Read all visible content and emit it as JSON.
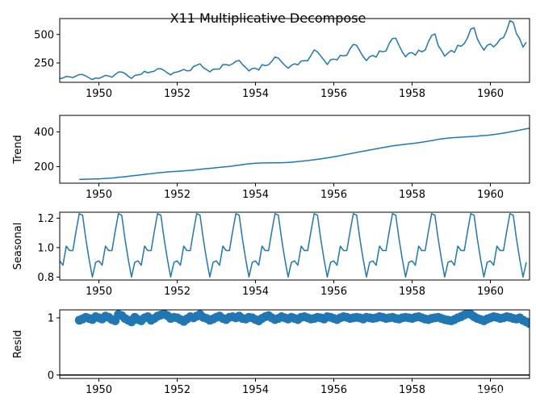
{
  "title": "X11 Multiplicative Decompose",
  "watermark": "知乎 @陈不知",
  "series_color": "#1f77b4",
  "chart_data": [
    {
      "type": "line",
      "name": "observed",
      "ylabel": "",
      "xlim": [
        1949.0,
        1961.0
      ],
      "ylim": [
        80,
        640
      ],
      "x_ticks": [
        1950,
        1952,
        1954,
        1956,
        1958,
        1960
      ],
      "y_ticks": [
        250,
        500
      ],
      "start": 1949.0,
      "step": 0.0833333,
      "values": [
        112,
        118,
        132,
        129,
        121,
        135,
        148,
        148,
        136,
        119,
        104,
        118,
        115,
        126,
        141,
        135,
        125,
        149,
        170,
        170,
        158,
        133,
        114,
        140,
        145,
        150,
        178,
        163,
        172,
        178,
        199,
        199,
        184,
        162,
        146,
        166,
        171,
        180,
        193,
        181,
        183,
        218,
        230,
        242,
        209,
        191,
        172,
        194,
        196,
        196,
        236,
        235,
        229,
        243,
        264,
        272,
        237,
        211,
        180,
        201,
        204,
        188,
        235,
        227,
        234,
        264,
        302,
        293,
        259,
        229,
        203,
        229,
        242,
        233,
        267,
        269,
        270,
        315,
        364,
        347,
        312,
        274,
        237,
        278,
        284,
        277,
        317,
        313,
        318,
        374,
        413,
        405,
        355,
        306,
        271,
        306,
        315,
        301,
        356,
        348,
        355,
        422,
        465,
        467,
        404,
        347,
        305,
        336,
        340,
        318,
        362,
        348,
        363,
        435,
        491,
        505,
        404,
        359,
        310,
        337,
        360,
        342,
        406,
        396,
        420,
        472,
        548,
        559,
        463,
        407,
        362,
        405,
        417,
        391,
        419,
        461,
        472,
        535,
        622,
        606,
        508,
        461,
        390,
        432
      ]
    },
    {
      "type": "line",
      "name": "trend",
      "ylabel": "Trend",
      "xlim": [
        1949.0,
        1961.0
      ],
      "ylim": [
        105,
        495
      ],
      "x_ticks": [
        1950,
        1952,
        1954,
        1956,
        1958,
        1960
      ],
      "y_ticks": [
        200,
        400
      ],
      "start": 1949.5,
      "step": 0.0833333,
      "values": [
        126.8,
        127.2,
        127.6,
        128.1,
        128.6,
        129.0,
        129.8,
        131.0,
        132.2,
        133.5,
        134.9,
        136.4,
        138.3,
        140.3,
        142.3,
        144.5,
        146.7,
        148.9,
        151.1,
        153.3,
        155.5,
        157.7,
        159.8,
        161.8,
        163.8,
        165.8,
        167.8,
        169.5,
        171.0,
        172.2,
        173.3,
        174.5,
        175.8,
        177.2,
        178.9,
        180.7,
        182.6,
        184.6,
        186.6,
        188.6,
        190.5,
        192.4,
        194.1,
        195.9,
        197.7,
        199.5,
        201.7,
        204.0,
        206.5,
        209.0,
        211.6,
        214.0,
        216.2,
        218.1,
        219.5,
        220.6,
        221.3,
        221.7,
        222.0,
        222.1,
        222.2,
        222.4,
        222.7,
        223.4,
        224.5,
        225.8,
        227.4,
        229.2,
        231.0,
        233.0,
        235.1,
        237.4,
        239.8,
        242.3,
        244.9,
        247.7,
        250.6,
        253.6,
        256.8,
        260.2,
        263.7,
        267.3,
        270.9,
        274.6,
        278.3,
        281.9,
        285.4,
        288.8,
        292.3,
        295.7,
        299.1,
        302.6,
        306.1,
        309.6,
        313.0,
        316.3,
        319.3,
        322.1,
        324.5,
        326.7,
        328.8,
        330.9,
        333.1,
        335.4,
        337.9,
        340.6,
        343.6,
        346.8,
        350.2,
        353.6,
        356.9,
        359.8,
        362.3,
        364.4,
        366.0,
        367.4,
        368.7,
        369.8,
        370.9,
        372.0,
        373.2,
        374.5,
        375.9,
        377.4,
        378.9,
        380.5,
        382.4,
        384.5,
        387.0,
        389.9,
        393.0,
        396.3,
        399.8,
        403.3,
        406.9,
        410.5,
        414.1,
        417.7,
        421.3,
        424.8,
        428.2,
        431.5,
        434.6,
        437.7,
        440.6,
        443.5,
        446.4,
        449.3,
        452.3,
        455.5,
        458.8,
        462.2,
        465.7,
        469.1,
        472.4,
        475.0
      ]
    },
    {
      "type": "line",
      "name": "seasonal",
      "ylabel": "Seasonal",
      "xlim": [
        1949.0,
        1961.0
      ],
      "ylim": [
        0.78,
        1.24
      ],
      "x_ticks": [
        1950,
        1952,
        1954,
        1956,
        1958,
        1960
      ],
      "y_ticks": [
        0.8,
        1.0,
        1.2
      ],
      "start": 1949.0,
      "step": 0.0833333,
      "pattern": [
        0.91,
        0.88,
        1.01,
        0.98,
        0.98,
        1.11,
        1.23,
        1.22,
        1.06,
        0.92,
        0.8,
        0.9
      ],
      "count": 144
    },
    {
      "type": "scatter",
      "name": "resid",
      "ylabel": "Resid",
      "xlim": [
        1949.0,
        1961.0
      ],
      "ylim": [
        -0.06,
        1.14
      ],
      "x_ticks": [
        1950,
        1952,
        1954,
        1956,
        1958,
        1960
      ],
      "y_ticks": [
        0,
        1
      ],
      "baseline": 0,
      "start": 1949.5,
      "step": 0.0833333,
      "values": [
        0.96,
        0.98,
        1.01,
        0.99,
        0.97,
        1.02,
        1.0,
        0.98,
        1.03,
        1.01,
        0.97,
        0.95,
        1.06,
        1.04,
        0.99,
        0.96,
        0.93,
        1.01,
        0.97,
        0.95,
        1.0,
        1.02,
        0.96,
        0.99,
        1.03,
        1.05,
        1.07,
        1.04,
        0.99,
        1.01,
        1.0,
        0.97,
        0.94,
        0.98,
        1.02,
        1.0,
        1.03,
        1.06,
        1.01,
        0.99,
        0.96,
        0.98,
        1.01,
        1.03,
        0.99,
        0.97,
        1.01,
        1.02,
        1.0,
        1.03,
        0.99,
        0.98,
        1.01,
        1.0,
        0.97,
        0.95,
        0.99,
        1.02,
        1.04,
        1.0,
        0.97,
        0.99,
        1.02,
        1.0,
        0.98,
        1.01,
        0.99,
        0.97,
        1.01,
        1.02,
        1.0,
        0.98,
        0.99,
        1.01,
        1.0,
        0.98,
        1.02,
        1.01,
        0.99,
        0.97,
        1.0,
        1.02,
        1.01,
        0.99,
        1.0,
        1.01,
        1.0,
        0.98,
        1.01,
        1.0,
        0.99,
        1.0,
        1.02,
        1.01,
        0.99,
        1.0,
        1.01,
        0.99,
        0.98,
        1.0,
        1.01,
        1.0,
        0.99,
        1.01,
        1.02,
        1.0,
        0.98,
        0.97,
        0.99,
        1.0,
        1.01,
        0.99,
        0.97,
        0.96,
        0.95,
        0.97,
        1.0,
        1.02,
        1.05,
        1.08,
        1.06,
        1.02,
        0.99,
        0.97,
        0.95,
        0.98,
        1.0,
        1.02,
        1.01,
        0.99,
        1.0,
        1.02,
        1.01,
        0.99,
        0.98,
        1.0,
        0.96,
        0.93,
        0.9,
        0.95,
        1.01,
        1.02
      ]
    }
  ]
}
